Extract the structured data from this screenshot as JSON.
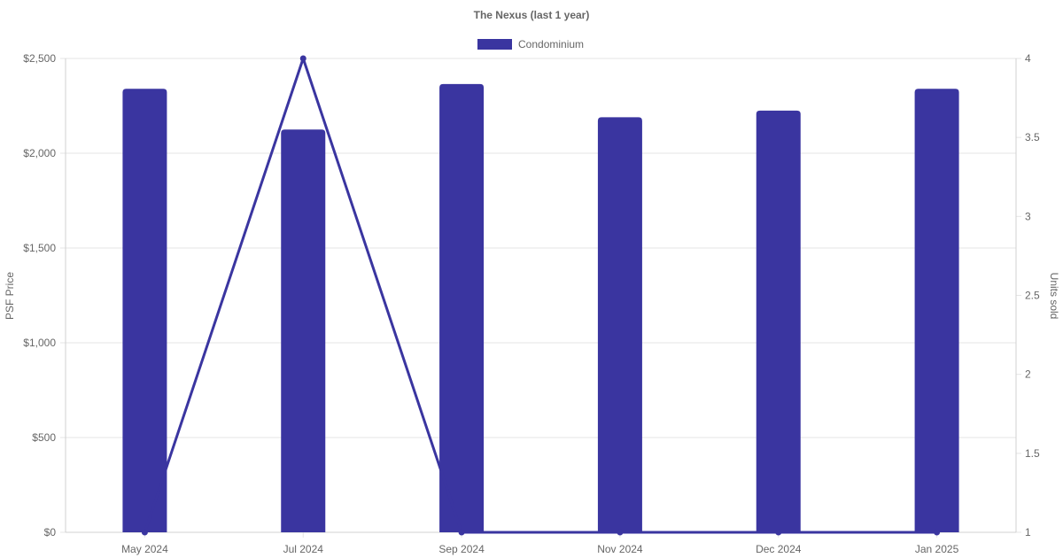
{
  "chart_data": {
    "type": "bar",
    "title": "The Nexus (last 1 year)",
    "categories": [
      "May 2024",
      "Jul 2024",
      "Sep 2024",
      "Nov 2024",
      "Dec 2024",
      "Jan 2025"
    ],
    "series": [
      {
        "name": "Condominium",
        "type": "bar",
        "axis": "left",
        "values": [
          2340,
          2125,
          2365,
          2190,
          2225,
          2340
        ]
      },
      {
        "type": "line",
        "axis": "right",
        "values": [
          1,
          4,
          1,
          1,
          1,
          1
        ]
      }
    ],
    "ylabel": "PSF Price",
    "ylabel_right": "Units sold",
    "ylim": [
      0,
      2500
    ],
    "ylim_right": [
      1,
      4
    ],
    "yticks": [
      "$0",
      "$500",
      "$1,000",
      "$1,500",
      "$2,000",
      "$2,500"
    ],
    "yticks_right": [
      "1",
      "1.5",
      "2",
      "2.5",
      "3",
      "3.5",
      "4"
    ],
    "legend": "top",
    "grid": true,
    "colors": {
      "bar": "#3a35a0",
      "line": "#3a35a0"
    }
  }
}
